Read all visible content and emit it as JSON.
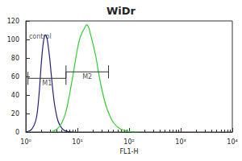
{
  "chart_data": {
    "type": "line",
    "title": "WiDr",
    "x_label": "FL1-H",
    "log": "x",
    "xlim": [
      1,
      10000
    ],
    "xticks": [
      {
        "value": 1,
        "label": "10⁰"
      },
      {
        "value": 10,
        "label": "10¹"
      },
      {
        "value": 100,
        "label": "10²"
      },
      {
        "value": 1000,
        "label": "10³"
      },
      {
        "value": 10000,
        "label": "10⁴"
      }
    ],
    "ylim": [
      0,
      120
    ],
    "yticks": [
      0,
      20,
      40,
      60,
      80,
      100,
      120
    ],
    "grid": false,
    "series": [
      {
        "name": "control",
        "color": "#1f1f7a",
        "x": [
          1,
          1.3,
          1.6,
          1.8,
          2.0,
          2.2,
          2.4,
          2.6,
          2.9,
          3.2,
          3.6,
          4.2,
          5,
          6,
          8
        ],
        "values": [
          0,
          3,
          15,
          40,
          75,
          98,
          105,
          100,
          80,
          55,
          30,
          12,
          4,
          1,
          0
        ]
      },
      {
        "color": "#33cc33",
        "x": [
          3,
          4,
          5,
          6,
          7,
          8,
          9,
          10,
          11,
          12.5,
          14,
          15,
          16.5,
          18,
          20,
          23,
          26,
          30,
          35,
          42,
          50,
          65,
          90,
          150
        ],
        "values": [
          0,
          3,
          10,
          22,
          40,
          58,
          75,
          90,
          100,
          108,
          113,
          116,
          113,
          105,
          95,
          80,
          62,
          45,
          30,
          18,
          10,
          4,
          1,
          0
        ]
      }
    ],
    "gates": [
      {
        "label": "M1",
        "range": [
          1.1,
          6
        ],
        "y": 58
      },
      {
        "label": "M2",
        "range": [
          6,
          40
        ],
        "y": 65
      }
    ],
    "annotations": [
      {
        "text": "control",
        "x": 1.15,
        "y": 103
      }
    ]
  }
}
